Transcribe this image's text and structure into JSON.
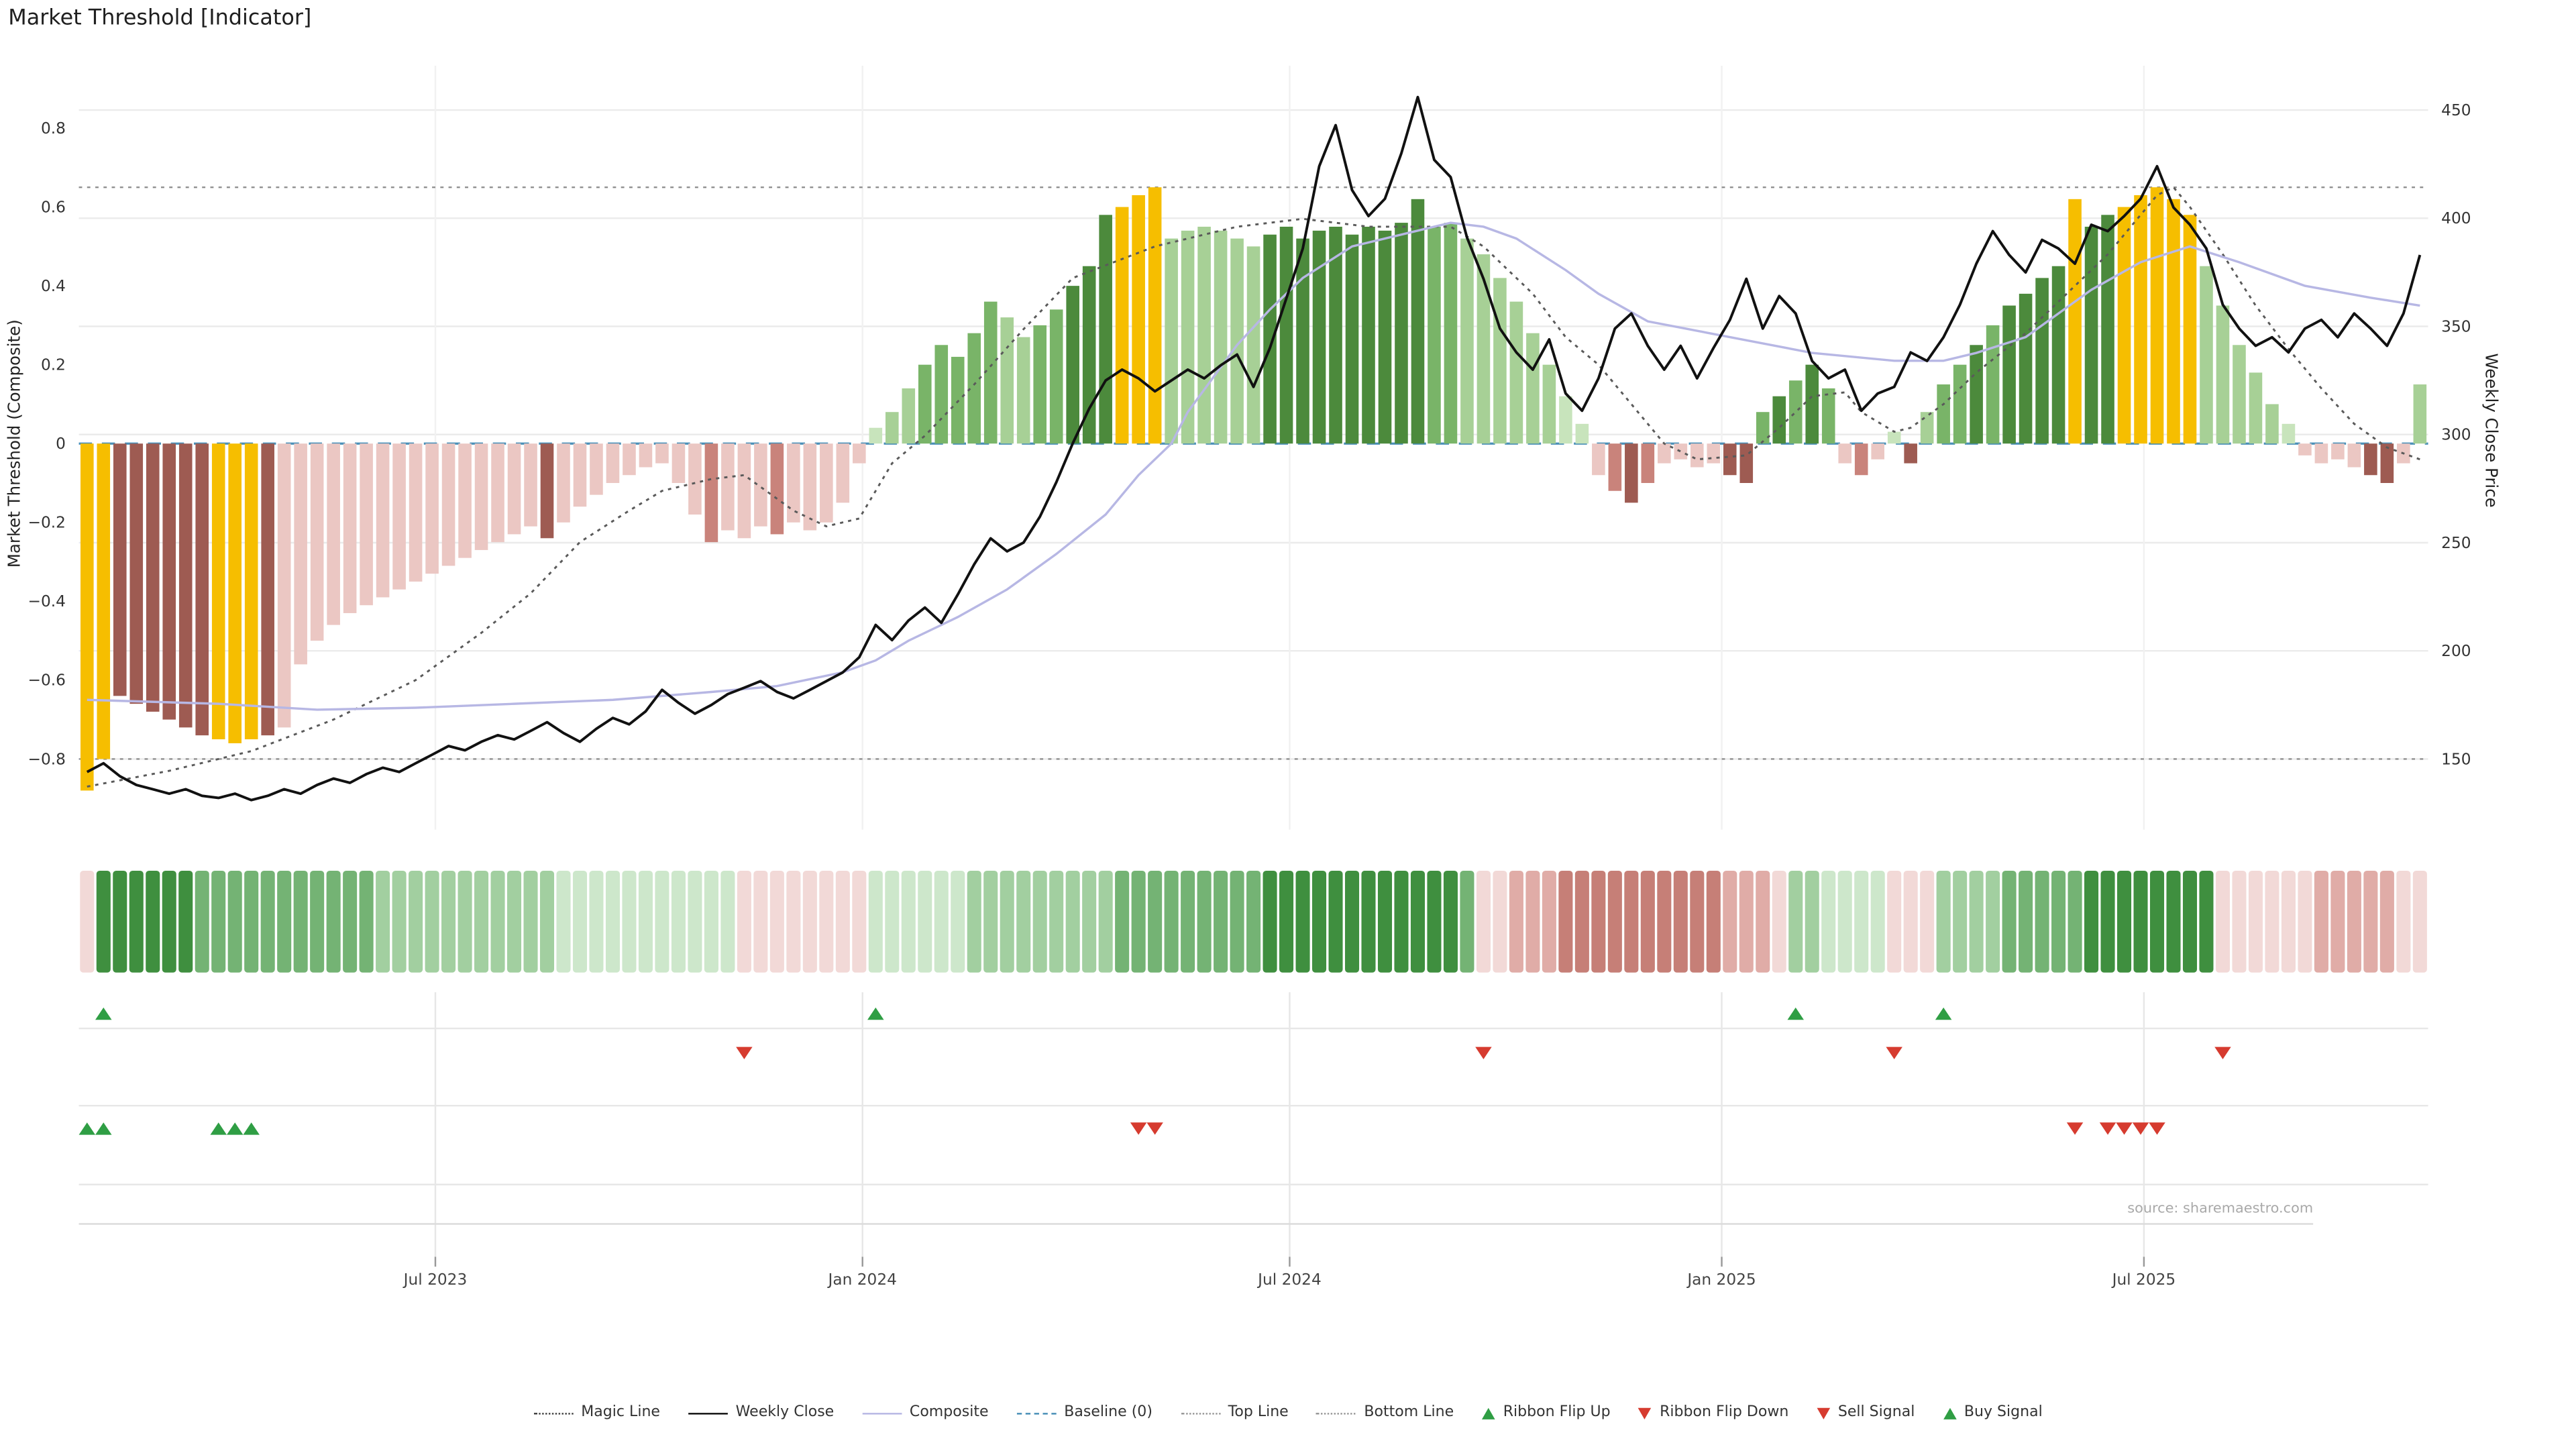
{
  "title": "Market Threshold [Indicator]",
  "source": "source: sharemaestro.com",
  "axes": {
    "left_label": "Market Threshold (Composite)",
    "right_label": "Weekly Close Price",
    "left_ticks": [
      0.8,
      0.6,
      0.4,
      0.2,
      0,
      -0.2,
      -0.4,
      -0.6,
      -0.8
    ],
    "right_ticks": [
      450,
      400,
      350,
      300,
      250,
      200,
      150
    ],
    "x_ticks": [
      {
        "label": "Jul 2023",
        "week": 21.7
      },
      {
        "label": "Jan 2024",
        "week": 47.7
      },
      {
        "label": "Jul 2024",
        "week": 73.7
      },
      {
        "label": "Jan 2025",
        "week": 100.0
      },
      {
        "label": "Jul 2025",
        "week": 125.7
      }
    ]
  },
  "chart_data": {
    "type": "bar+line",
    "weeks": 143,
    "ylim_left": [
      -1.0,
      0.98
    ],
    "ylim_right": [
      110,
      475
    ],
    "top_line": 0.65,
    "bottom_line": -0.8,
    "baseline": 0,
    "threshold": {
      "values": [
        -0.88,
        -0.8,
        -0.64,
        -0.66,
        -0.68,
        -0.7,
        -0.72,
        -0.74,
        -0.75,
        -0.76,
        -0.75,
        -0.74,
        -0.72,
        -0.56,
        -0.5,
        -0.46,
        -0.43,
        -0.41,
        -0.39,
        -0.37,
        -0.35,
        -0.33,
        -0.31,
        -0.29,
        -0.27,
        -0.25,
        -0.23,
        -0.21,
        -0.24,
        -0.2,
        -0.16,
        -0.13,
        -0.1,
        -0.08,
        -0.06,
        -0.05,
        -0.1,
        -0.18,
        -0.25,
        -0.22,
        -0.24,
        -0.21,
        -0.23,
        -0.2,
        -0.22,
        -0.2,
        -0.15,
        -0.05,
        0.04,
        0.08,
        0.14,
        0.2,
        0.25,
        0.22,
        0.28,
        0.36,
        0.32,
        0.27,
        0.3,
        0.34,
        0.4,
        0.45,
        0.58,
        0.6,
        0.63,
        0.65,
        0.52,
        0.54,
        0.55,
        0.54,
        0.52,
        0.5,
        0.53,
        0.55,
        0.52,
        0.54,
        0.55,
        0.53,
        0.55,
        0.54,
        0.56,
        0.62,
        0.55,
        0.56,
        0.52,
        0.48,
        0.42,
        0.36,
        0.28,
        0.2,
        0.12,
        0.05,
        -0.08,
        -0.12,
        -0.15,
        -0.1,
        -0.05,
        -0.04,
        -0.06,
        -0.05,
        -0.08,
        -0.1,
        0.08,
        0.12,
        0.16,
        0.2,
        0.14,
        -0.05,
        -0.08,
        -0.04,
        0.03,
        -0.05,
        0.08,
        0.15,
        0.2,
        0.25,
        0.3,
        0.35,
        0.38,
        0.42,
        0.45,
        0.62,
        0.55,
        0.58,
        0.6,
        0.63,
        0.65,
        0.62,
        0.58,
        0.45,
        0.35,
        0.25,
        0.18,
        0.1,
        0.05,
        -0.03,
        -0.05,
        -0.04,
        -0.06,
        -0.08,
        -0.1,
        -0.05,
        0.15
      ],
      "colors": [
        "y",
        "y",
        "dr",
        "dr",
        "dr",
        "dr",
        "dr",
        "dr",
        "y",
        "y",
        "y",
        "dr",
        "lr",
        "lr",
        "lr",
        "lr",
        "lr",
        "lr",
        "lr",
        "lr",
        "lr",
        "lr",
        "lr",
        "lr",
        "lr",
        "lr",
        "lr",
        "lr",
        "dr",
        "lr",
        "lr",
        "lr",
        "lr",
        "lr",
        "lr",
        "lr",
        "lr",
        "lr",
        "mr",
        "lr",
        "lr",
        "lr",
        "mr",
        "lr",
        "lr",
        "lr",
        "lr",
        "lr",
        "vlg",
        "lg",
        "lg",
        "mg",
        "mg",
        "mg",
        "mg",
        "mg",
        "lg",
        "lg",
        "mg",
        "mg",
        "dg",
        "dg",
        "dg",
        "y",
        "y",
        "y",
        "lg",
        "lg",
        "lg",
        "lg",
        "lg",
        "lg",
        "dg",
        "dg",
        "dg",
        "dg",
        "dg",
        "dg",
        "dg",
        "dg",
        "dg",
        "dg",
        "mg",
        "mg",
        "lg",
        "lg",
        "lg",
        "lg",
        "lg",
        "lg",
        "vlg",
        "vlg",
        "lr",
        "mr",
        "dr",
        "mr",
        "lr",
        "lr",
        "lr",
        "lr",
        "dr",
        "dr",
        "mg",
        "dg",
        "mg",
        "dg",
        "mg",
        "lr",
        "mr",
        "lr",
        "vlg",
        "dr",
        "lg",
        "mg",
        "mg",
        "dg",
        "mg",
        "dg",
        "dg",
        "dg",
        "dg",
        "y",
        "dg",
        "dg",
        "y",
        "y",
        "y",
        "y",
        "y",
        "lg",
        "lg",
        "lg",
        "lg",
        "lg",
        "vlg",
        "lr",
        "lr",
        "lr",
        "lr",
        "dr",
        "dr",
        "lr",
        "lg"
      ]
    },
    "weekly_close": [
      144,
      148,
      142,
      138,
      136,
      134,
      136,
      133,
      132,
      134,
      131,
      133,
      136,
      134,
      138,
      141,
      139,
      143,
      146,
      144,
      148,
      152,
      156,
      154,
      158,
      161,
      159,
      163,
      167,
      162,
      158,
      164,
      169,
      166,
      172,
      182,
      176,
      171,
      175,
      180,
      183,
      186,
      181,
      178,
      182,
      186,
      190,
      197,
      212,
      205,
      214,
      220,
      213,
      226,
      240,
      252,
      246,
      250,
      262,
      278,
      296,
      312,
      325,
      330,
      326,
      320,
      325,
      330,
      326,
      332,
      337,
      322,
      340,
      363,
      386,
      424,
      443,
      413,
      401,
      409,
      430,
      456,
      427,
      419,
      391,
      372,
      349,
      338,
      330,
      344,
      319,
      311,
      326,
      349,
      356,
      341,
      330,
      341,
      326,
      340,
      353,
      372,
      349,
      364,
      356,
      334,
      326,
      330,
      311,
      319,
      322,
      338,
      334,
      345,
      360,
      379,
      394,
      383,
      375,
      390,
      386,
      379,
      397,
      394,
      401,
      409,
      424,
      405,
      397,
      386,
      360,
      349,
      341,
      345,
      338,
      349,
      353,
      345,
      356,
      349,
      341,
      356,
      383
    ],
    "composite_line": [
      [
        0,
        -0.65
      ],
      [
        8,
        -0.66
      ],
      [
        14,
        -0.675
      ],
      [
        20,
        -0.67
      ],
      [
        26,
        -0.66
      ],
      [
        32,
        -0.65
      ],
      [
        38,
        -0.63
      ],
      [
        42,
        -0.615
      ],
      [
        46,
        -0.58
      ],
      [
        48,
        -0.55
      ],
      [
        50,
        -0.5
      ],
      [
        53,
        -0.44
      ],
      [
        56,
        -0.37
      ],
      [
        59,
        -0.28
      ],
      [
        62,
        -0.18
      ],
      [
        64,
        -0.08
      ],
      [
        66,
        0.0
      ],
      [
        67,
        0.08
      ],
      [
        70,
        0.25
      ],
      [
        72,
        0.34
      ],
      [
        74,
        0.42
      ],
      [
        77,
        0.5
      ],
      [
        81,
        0.54
      ],
      [
        83,
        0.56
      ],
      [
        85,
        0.55
      ],
      [
        87,
        0.52
      ],
      [
        90,
        0.44
      ],
      [
        92,
        0.38
      ],
      [
        95,
        0.31
      ],
      [
        100,
        0.27
      ],
      [
        105,
        0.23
      ],
      [
        110,
        0.21
      ],
      [
        113,
        0.21
      ],
      [
        115,
        0.23
      ],
      [
        118,
        0.27
      ],
      [
        120,
        0.33
      ],
      [
        122,
        0.39
      ],
      [
        125,
        0.46
      ],
      [
        128,
        0.5
      ],
      [
        131,
        0.46
      ],
      [
        135,
        0.4
      ],
      [
        139,
        0.37
      ],
      [
        142,
        0.35
      ]
    ],
    "magic_line": [
      [
        0,
        -0.87
      ],
      [
        5,
        -0.83
      ],
      [
        10,
        -0.78
      ],
      [
        15,
        -0.7
      ],
      [
        20,
        -0.6
      ],
      [
        24,
        -0.48
      ],
      [
        27,
        -0.38
      ],
      [
        30,
        -0.25
      ],
      [
        33,
        -0.17
      ],
      [
        35,
        -0.12
      ],
      [
        38,
        -0.09
      ],
      [
        40,
        -0.08
      ],
      [
        43,
        -0.17
      ],
      [
        45,
        -0.21
      ],
      [
        47,
        -0.19
      ],
      [
        49,
        -0.05
      ],
      [
        51,
        0.02
      ],
      [
        54,
        0.15
      ],
      [
        57,
        0.29
      ],
      [
        60,
        0.42
      ],
      [
        65,
        0.5
      ],
      [
        70,
        0.55
      ],
      [
        74,
        0.57
      ],
      [
        78,
        0.55
      ],
      [
        83,
        0.55
      ],
      [
        85,
        0.5
      ],
      [
        88,
        0.38
      ],
      [
        90,
        0.27
      ],
      [
        92,
        0.2
      ],
      [
        95,
        0.05
      ],
      [
        96,
        0.0
      ],
      [
        98,
        -0.04
      ],
      [
        101,
        -0.03
      ],
      [
        103,
        0.04
      ],
      [
        105,
        0.12
      ],
      [
        107,
        0.13
      ],
      [
        108,
        0.08
      ],
      [
        110,
        0.03
      ],
      [
        111,
        0.04
      ],
      [
        113,
        0.1
      ],
      [
        115,
        0.18
      ],
      [
        118,
        0.28
      ],
      [
        121,
        0.4
      ],
      [
        123,
        0.48
      ],
      [
        125,
        0.58
      ],
      [
        126,
        0.63
      ],
      [
        127,
        0.65
      ],
      [
        128,
        0.6
      ],
      [
        130,
        0.48
      ],
      [
        132,
        0.35
      ],
      [
        134,
        0.24
      ],
      [
        136,
        0.14
      ],
      [
        138,
        0.05
      ],
      [
        140,
        -0.01
      ],
      [
        142,
        -0.04
      ]
    ],
    "ribbon": [
      "r1",
      "g4",
      "g4",
      "g4",
      "g4",
      "g4",
      "g4",
      "g3",
      "g3",
      "g3",
      "g3",
      "g3",
      "g3",
      "g3",
      "g3",
      "g3",
      "g3",
      "g3",
      "g2",
      "g2",
      "g2",
      "g2",
      "g2",
      "g2",
      "g2",
      "g2",
      "g2",
      "g2",
      "g2",
      "g1",
      "g1",
      "g1",
      "g1",
      "g1",
      "g1",
      "g1",
      "g1",
      "g1",
      "g1",
      "g1",
      "r1",
      "r1",
      "r1",
      "r1",
      "r1",
      "r1",
      "r1",
      "r1",
      "g1",
      "g1",
      "g1",
      "g1",
      "g1",
      "g1",
      "g2",
      "g2",
      "g2",
      "g2",
      "g2",
      "g2",
      "g2",
      "g2",
      "g2",
      "g3",
      "g3",
      "g3",
      "g3",
      "g3",
      "g3",
      "g3",
      "g3",
      "g3",
      "g4",
      "g4",
      "g4",
      "g4",
      "g4",
      "g4",
      "g4",
      "g4",
      "g4",
      "g4",
      "g4",
      "g4",
      "g3",
      "r1",
      "r1",
      "r2",
      "r2",
      "r2",
      "r3",
      "r3",
      "r3",
      "r3",
      "r3",
      "r3",
      "r3",
      "r3",
      "r3",
      "r3",
      "r2",
      "r2",
      "r2",
      "r1",
      "g2",
      "g2",
      "g1",
      "g1",
      "g1",
      "g1",
      "r1",
      "r1",
      "r1",
      "g2",
      "g2",
      "g2",
      "g2",
      "g3",
      "g3",
      "g3",
      "g3",
      "g3",
      "g4",
      "g4",
      "g4",
      "g4",
      "g4",
      "g4",
      "g4",
      "g4",
      "r1",
      "r1",
      "r1",
      "r1",
      "r1",
      "r1",
      "r2",
      "r2",
      "r2",
      "r2",
      "r2",
      "r1",
      "r1"
    ],
    "signals": {
      "ribbon_flip_up": [
        1,
        48,
        104,
        113
      ],
      "ribbon_flip_down": [
        40,
        85,
        110,
        130
      ],
      "sell": [
        64,
        65,
        121,
        123,
        124,
        125,
        126
      ],
      "buy": [
        0,
        1,
        8,
        9,
        10
      ]
    }
  },
  "colors": {
    "bar": {
      "y": "#F6BE00",
      "dg": "#4C8A3C",
      "mg": "#79B468",
      "lg": "#A7D096",
      "vlg": "#C8E4BC",
      "dr": "#9E5B52",
      "mr": "#C9837B",
      "lr": "#EBC7C3"
    },
    "ribbon": {
      "g4": "#3F8F3F",
      "g3": "#74B374",
      "g2": "#A2CFA0",
      "g1": "#CDE7CB",
      "r1": "#F2D9D7",
      "r2": "#E0ACA7",
      "r3": "#C67F77"
    },
    "weekly_close": "#111111",
    "composite": "#B7B7E4",
    "magic": "#5A5A5A",
    "baseline": "#4A90B8",
    "ref_line": "#909090",
    "buy": "#2F9E44",
    "sell": "#D63B2F",
    "grid": "#EBEBEB"
  },
  "legend": [
    {
      "label": "Magic Line",
      "type": "sym-dotted-dark",
      "icon": "dotted-line-icon"
    },
    {
      "label": "Weekly Close",
      "type": "sym-solid-black",
      "icon": "solid-line-icon"
    },
    {
      "label": "Composite",
      "type": "sym-solid-purple",
      "icon": "solid-line-icon"
    },
    {
      "label": "Baseline (0)",
      "type": "sym-dashed-blue",
      "icon": "dashed-line-icon"
    },
    {
      "label": "Top Line",
      "type": "sym-dotted-gray",
      "icon": "dotted-line-icon"
    },
    {
      "label": "Bottom Line",
      "type": "sym-dotted-gray",
      "icon": "dotted-line-icon"
    },
    {
      "label": "Ribbon Flip Up",
      "type": "sym-tri-up",
      "icon": "triangle-up-icon"
    },
    {
      "label": "Ribbon Flip Down",
      "type": "sym-tri-down",
      "icon": "triangle-down-icon"
    },
    {
      "label": "Sell Signal",
      "type": "sym-tri-down",
      "icon": "triangle-down-icon"
    },
    {
      "label": "Buy Signal",
      "type": "sym-tri-up",
      "icon": "triangle-up-icon"
    }
  ]
}
